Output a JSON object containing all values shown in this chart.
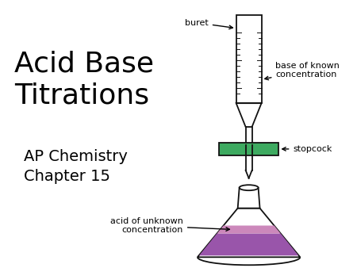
{
  "background_color": "#ffffff",
  "title_text": "Acid Base\nTitrations",
  "title_fontsize": 26,
  "subtitle_text": "AP Chemistry\nChapter 15",
  "subtitle_fontsize": 14,
  "buret_label": "buret",
  "base_label": "base of known\nconcentration",
  "stopcock_label": "stopcock",
  "acid_label": "acid of unknown\nconcentration",
  "label_fontsize": 8,
  "buret_color": "#8ab4d8",
  "stopcock_color": "#3daa60",
  "flask_liquid_color_top": "#cc88bb",
  "flask_liquid_color_bot": "#9955aa",
  "outline_color": "#111111"
}
